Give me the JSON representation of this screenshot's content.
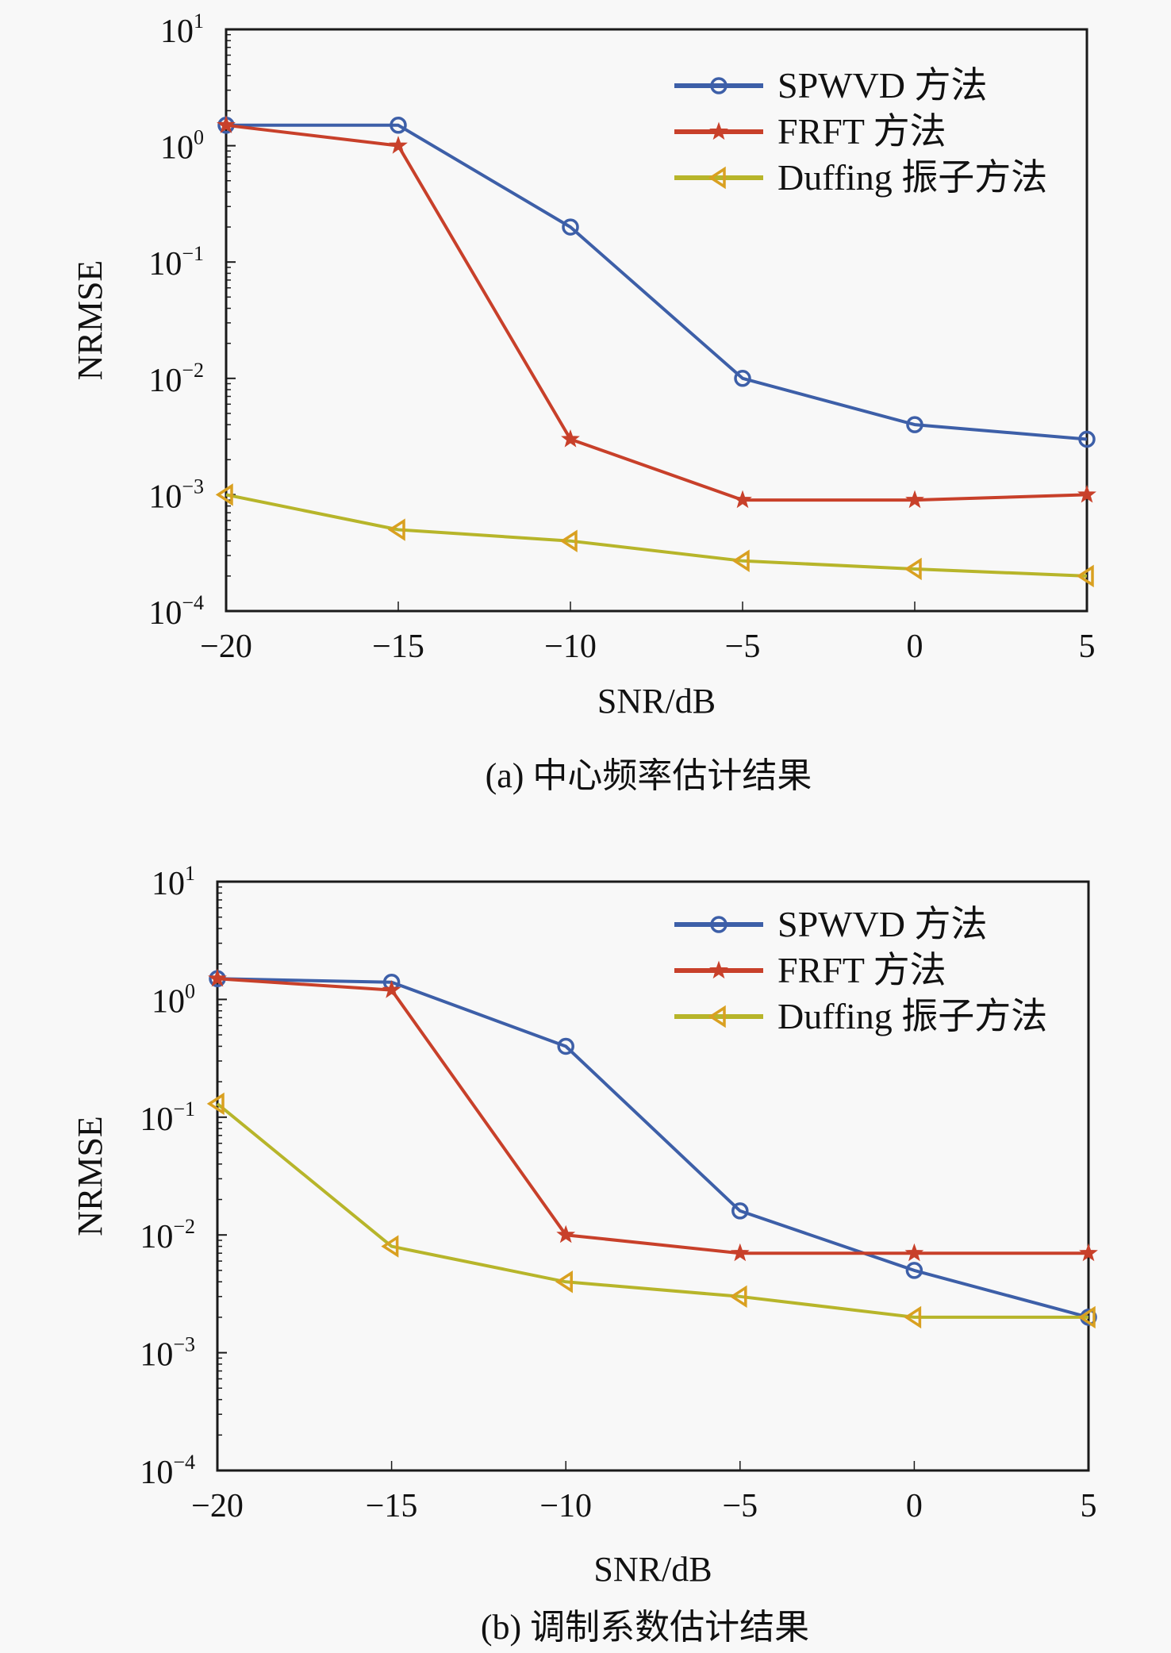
{
  "chart_data": [
    {
      "id": "a",
      "type": "line",
      "yscale": "log",
      "caption": "(a) 中心频率估计结果",
      "xlabel": "SNR/dB",
      "ylabel": "NRMSE",
      "xlim": [
        -20,
        5
      ],
      "ylim": [
        0.0001,
        10
      ],
      "x": [
        -20,
        -15,
        -10,
        -5,
        0,
        5
      ],
      "xtick_labels": [
        "−20",
        "−15",
        "−10",
        "−5",
        "0",
        "5"
      ],
      "ytick_exponents": [
        "1",
        "0",
        "−1",
        "−2",
        "−3",
        "−4"
      ],
      "ytick_base": "10",
      "legend_position": "top-right",
      "series": [
        {
          "name": "SPWVD 方法",
          "marker": "circle",
          "color": "#3d5fa8",
          "values": [
            1.5,
            1.5,
            0.2,
            0.01,
            0.004,
            0.003
          ]
        },
        {
          "name": "FRFT 方法",
          "marker": "star",
          "color": "#c8402a",
          "values": [
            1.5,
            1.0,
            0.003,
            0.0009,
            0.0009,
            0.001
          ]
        },
        {
          "name": "Duffing 振子方法",
          "marker": "triangle-left",
          "color": "#b7b52a",
          "values": [
            0.001,
            0.0005,
            0.0004,
            0.00027,
            0.00023,
            0.0002
          ]
        }
      ]
    },
    {
      "id": "b",
      "type": "line",
      "yscale": "log",
      "caption": "(b) 调制系数估计结果",
      "xlabel": "SNR/dB",
      "ylabel": "NRMSE",
      "xlim": [
        -20,
        5
      ],
      "ylim": [
        0.0001,
        10
      ],
      "x": [
        -20,
        -15,
        -10,
        -5,
        0,
        5
      ],
      "xtick_labels": [
        "−20",
        "−15",
        "−10",
        "−5",
        "0",
        "5"
      ],
      "ytick_exponents": [
        "1",
        "0",
        "−1",
        "−2",
        "−3",
        "−4"
      ],
      "ytick_base": "10",
      "legend_position": "top-right",
      "series": [
        {
          "name": "SPWVD 方法",
          "marker": "circle",
          "color": "#3d5fa8",
          "values": [
            1.5,
            1.4,
            0.4,
            0.016,
            0.005,
            0.002
          ]
        },
        {
          "name": "FRFT 方法",
          "marker": "star",
          "color": "#c8402a",
          "values": [
            1.5,
            1.2,
            0.01,
            0.007,
            0.007,
            0.007
          ]
        },
        {
          "name": "Duffing 振子方法",
          "marker": "triangle-left",
          "color": "#b7b52a",
          "values": [
            0.13,
            0.008,
            0.004,
            0.003,
            0.002,
            0.002
          ]
        }
      ]
    }
  ]
}
